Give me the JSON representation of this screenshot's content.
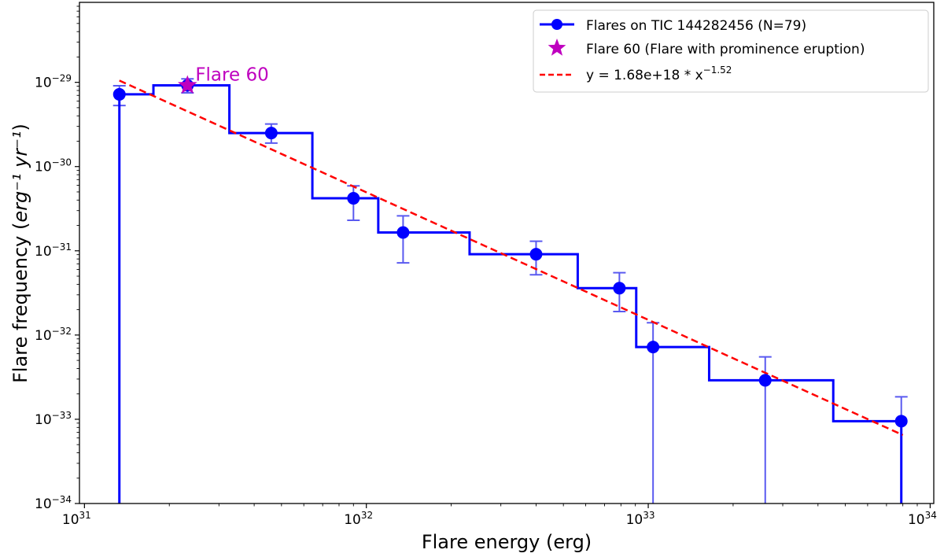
{
  "chart_data": {
    "type": "line",
    "xlabel": "Flare energy (erg)",
    "ylabel_main": "Flare frequency (",
    "ylabel_math": "erg⁻¹ yr⁻¹",
    "ylabel_close": ")",
    "xscale": "log",
    "yscale": "log",
    "xlim": [
      9.6e+30,
      1.03e+34
    ],
    "ylim": [
      1e-34,
      8.9e-29
    ],
    "x_ticks": [
      {
        "base": "10",
        "exp": "31",
        "value": 1e+31
      },
      {
        "base": "10",
        "exp": "32",
        "value": 1e+32
      },
      {
        "base": "10",
        "exp": "33",
        "value": 1e+33
      },
      {
        "base": "10",
        "exp": "34",
        "value": 1e+34
      }
    ],
    "y_ticks": [
      {
        "base": "10",
        "exp": "−29",
        "value": 1e-29
      },
      {
        "base": "10",
        "exp": "−30",
        "value": 1e-30
      },
      {
        "base": "10",
        "exp": "−31",
        "value": 1e-31
      },
      {
        "base": "10",
        "exp": "−32",
        "value": 1e-32
      },
      {
        "base": "10",
        "exp": "−33",
        "value": 1e-33
      },
      {
        "base": "10",
        "exp": "−34",
        "value": 1e-34
      }
    ],
    "grid": false,
    "legend_placement": "top-right",
    "series": [
      {
        "name": "Flares on TIC 144282456 (N=79)",
        "color": "#0000ff",
        "errorbar_color": "#5a5af0",
        "drawstyle": "steps-mid",
        "x": [
          1.33e+31,
          2.32e+31,
          4.6e+31,
          9e+31,
          1.35e+32,
          4e+32,
          7.9e+32,
          1.04e+33,
          2.6e+33,
          7.9e+33
        ],
        "y": [
          7.2e-30,
          9.2e-30,
          2.5e-30,
          4.2e-31,
          1.65e-31,
          9.1e-32,
          3.6e-32,
          7.2e-33,
          2.9e-33,
          9.5e-34
        ],
        "y_err_upper": [
          9.1e-30,
          1.1e-29,
          3.2e-30,
          5.9e-31,
          2.6e-31,
          1.3e-31,
          5.5e-32,
          1.4e-32,
          5.5e-33,
          1.85e-33
        ],
        "y_err_lower": [
          5.3e-30,
          7.5e-30,
          1.9e-30,
          2.3e-31,
          7.2e-32,
          5.2e-32,
          1.9e-32,
          0,
          0,
          0
        ]
      },
      {
        "name": "Flare 60 (Flare with prominence eruption)",
        "color": "#bf00bf",
        "marker": "star",
        "x": [
          2.32e+31
        ],
        "y": [
          9.2e-30
        ]
      },
      {
        "name_prefix": "y = 1.68e+18 * x",
        "name_exp": "−1.52",
        "color": "#ff0000",
        "linestyle": "dashed",
        "x": [
          1.33e+31,
          8e+33
        ],
        "y": [
          1.05e-29,
          6.5e-34
        ]
      }
    ],
    "annotations": [
      {
        "text": "Flare 60",
        "x": 2.32e+31,
        "y": 9.2e-30,
        "color": "#bf00bf"
      }
    ]
  }
}
